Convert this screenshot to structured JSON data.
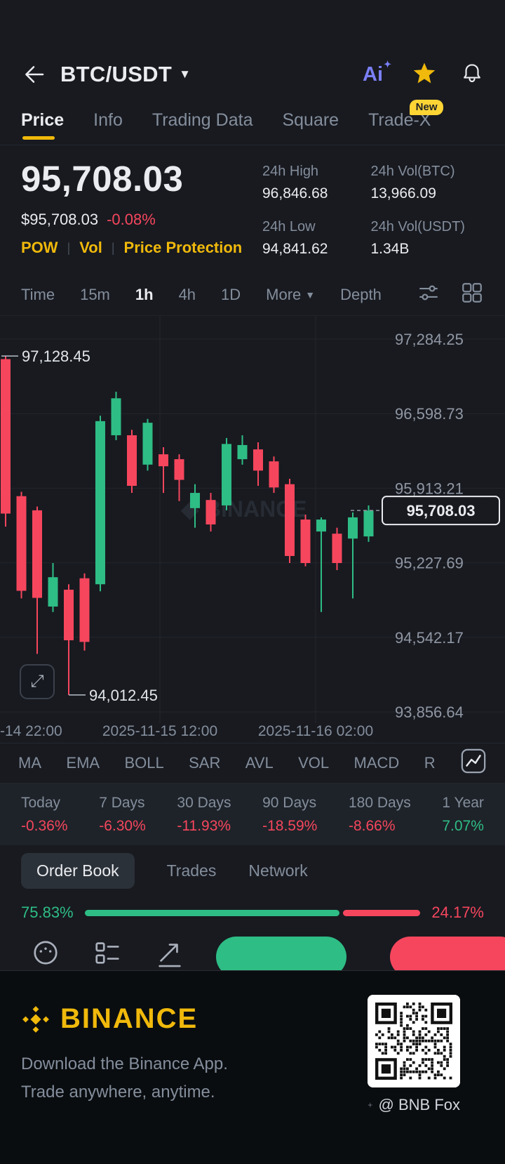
{
  "header": {
    "pair": "BTC/USDT",
    "ai": "Ai"
  },
  "nav": {
    "items": [
      "Price",
      "Info",
      "Trading Data",
      "Square",
      "Trade-X"
    ],
    "active": "Price",
    "badge": "New"
  },
  "ticker": {
    "last_price": "95,708.03",
    "fiat_price": "$95,708.03",
    "change_pct": "-0.08%",
    "tags": [
      "POW",
      "Vol",
      "Price Protection"
    ],
    "stats": [
      {
        "label": "24h High",
        "value": "96,846.68"
      },
      {
        "label": "24h Vol(BTC)",
        "value": "13,966.09"
      },
      {
        "label": "24h Low",
        "value": "94,841.62"
      },
      {
        "label": "24h Vol(USDT)",
        "value": "1.34B"
      }
    ]
  },
  "timeframes": {
    "items": [
      "Time",
      "15m",
      "1h",
      "4h",
      "1D"
    ],
    "active": "1h",
    "more": "More",
    "depth": "Depth"
  },
  "chart_data": {
    "type": "candlestick",
    "title": "BTC/USDT 1h",
    "y_ticks": [
      "97,284.25",
      "96,598.73",
      "95,913.21",
      "95,227.69",
      "94,542.17",
      "93,856.64"
    ],
    "y_values": [
      97284.25,
      96598.73,
      95913.21,
      95227.69,
      94542.17,
      93856.64
    ],
    "x_ticks": [
      "-14 22:00",
      "2025-11-15 12:00",
      "2025-11-16 02:00"
    ],
    "high_label": "97,128.45",
    "low_label": "94,012.45",
    "last_price": 95708.03,
    "last_price_label": "95,708.03",
    "watermark": "BINANCE",
    "candles": [
      [
        97100,
        97128.45,
        95560,
        95680
      ],
      [
        95840,
        95880,
        94900,
        94970
      ],
      [
        95710,
        95745,
        94390,
        94905
      ],
      [
        94825,
        95225,
        94775,
        95095
      ],
      [
        94980,
        95030,
        94012.45,
        94515
      ],
      [
        95085,
        95130,
        94420,
        94500
      ],
      [
        95030,
        96580,
        94965,
        96530
      ],
      [
        96400,
        96800,
        96355,
        96740
      ],
      [
        96400,
        96450,
        95870,
        95935
      ],
      [
        96130,
        96550,
        96075,
        96515
      ],
      [
        96225,
        96290,
        95870,
        96115
      ],
      [
        96180,
        96225,
        95795,
        95990
      ],
      [
        95730,
        95950,
        95550,
        95870
      ],
      [
        95805,
        95870,
        95515,
        95580
      ],
      [
        95755,
        96375,
        95710,
        96320
      ],
      [
        96180,
        96400,
        96130,
        96310
      ],
      [
        96270,
        96335,
        95935,
        96075
      ],
      [
        96160,
        96205,
        95870,
        95920
      ],
      [
        95950,
        96000,
        95225,
        95290
      ],
      [
        95625,
        95670,
        95195,
        95225
      ],
      [
        95515,
        95645,
        94775,
        95625
      ],
      [
        95495,
        95550,
        95160,
        95225
      ],
      [
        95450,
        95690,
        94900,
        95645
      ],
      [
        95470,
        95755,
        95420,
        95708.03
      ]
    ]
  },
  "indicators": {
    "items": [
      "MA",
      "EMA",
      "BOLL",
      "SAR",
      "AVL",
      "VOL",
      "MACD",
      "R"
    ]
  },
  "performance": [
    {
      "label": "Today",
      "value": "-0.36%",
      "dir": "down"
    },
    {
      "label": "7 Days",
      "value": "-6.30%",
      "dir": "down"
    },
    {
      "label": "30 Days",
      "value": "-11.93%",
      "dir": "down"
    },
    {
      "label": "90 Days",
      "value": "-18.59%",
      "dir": "down"
    },
    {
      "label": "180 Days",
      "value": "-8.66%",
      "dir": "down"
    },
    {
      "label": "1 Year",
      "value": "7.07%",
      "dir": "up"
    }
  ],
  "orderbook_tabs": {
    "items": [
      "Order Book",
      "Trades",
      "Network"
    ],
    "active": "Order Book"
  },
  "ratio": {
    "buy_pct": "75.83%",
    "sell_pct": "24.17%",
    "buy_value": 75.83,
    "sell_value": 24.17
  },
  "footer": {
    "brand": "BINANCE",
    "line1": "Download the Binance App.",
    "line2": "Trade anywhere, anytime.",
    "credit": "@ BNB Fox"
  },
  "colors": {
    "up": "#2EBD85",
    "down": "#F6465D",
    "accent": "#F0B90B",
    "badge": "#FCD535",
    "ai": "#7B7FF6",
    "text": "#EAECEF",
    "muted": "#848E9C",
    "grid": "#23262D",
    "bg": "#181A20",
    "panel": "#1E2329",
    "pill": "#2B3139",
    "footer_bg": "#0A0D10"
  }
}
